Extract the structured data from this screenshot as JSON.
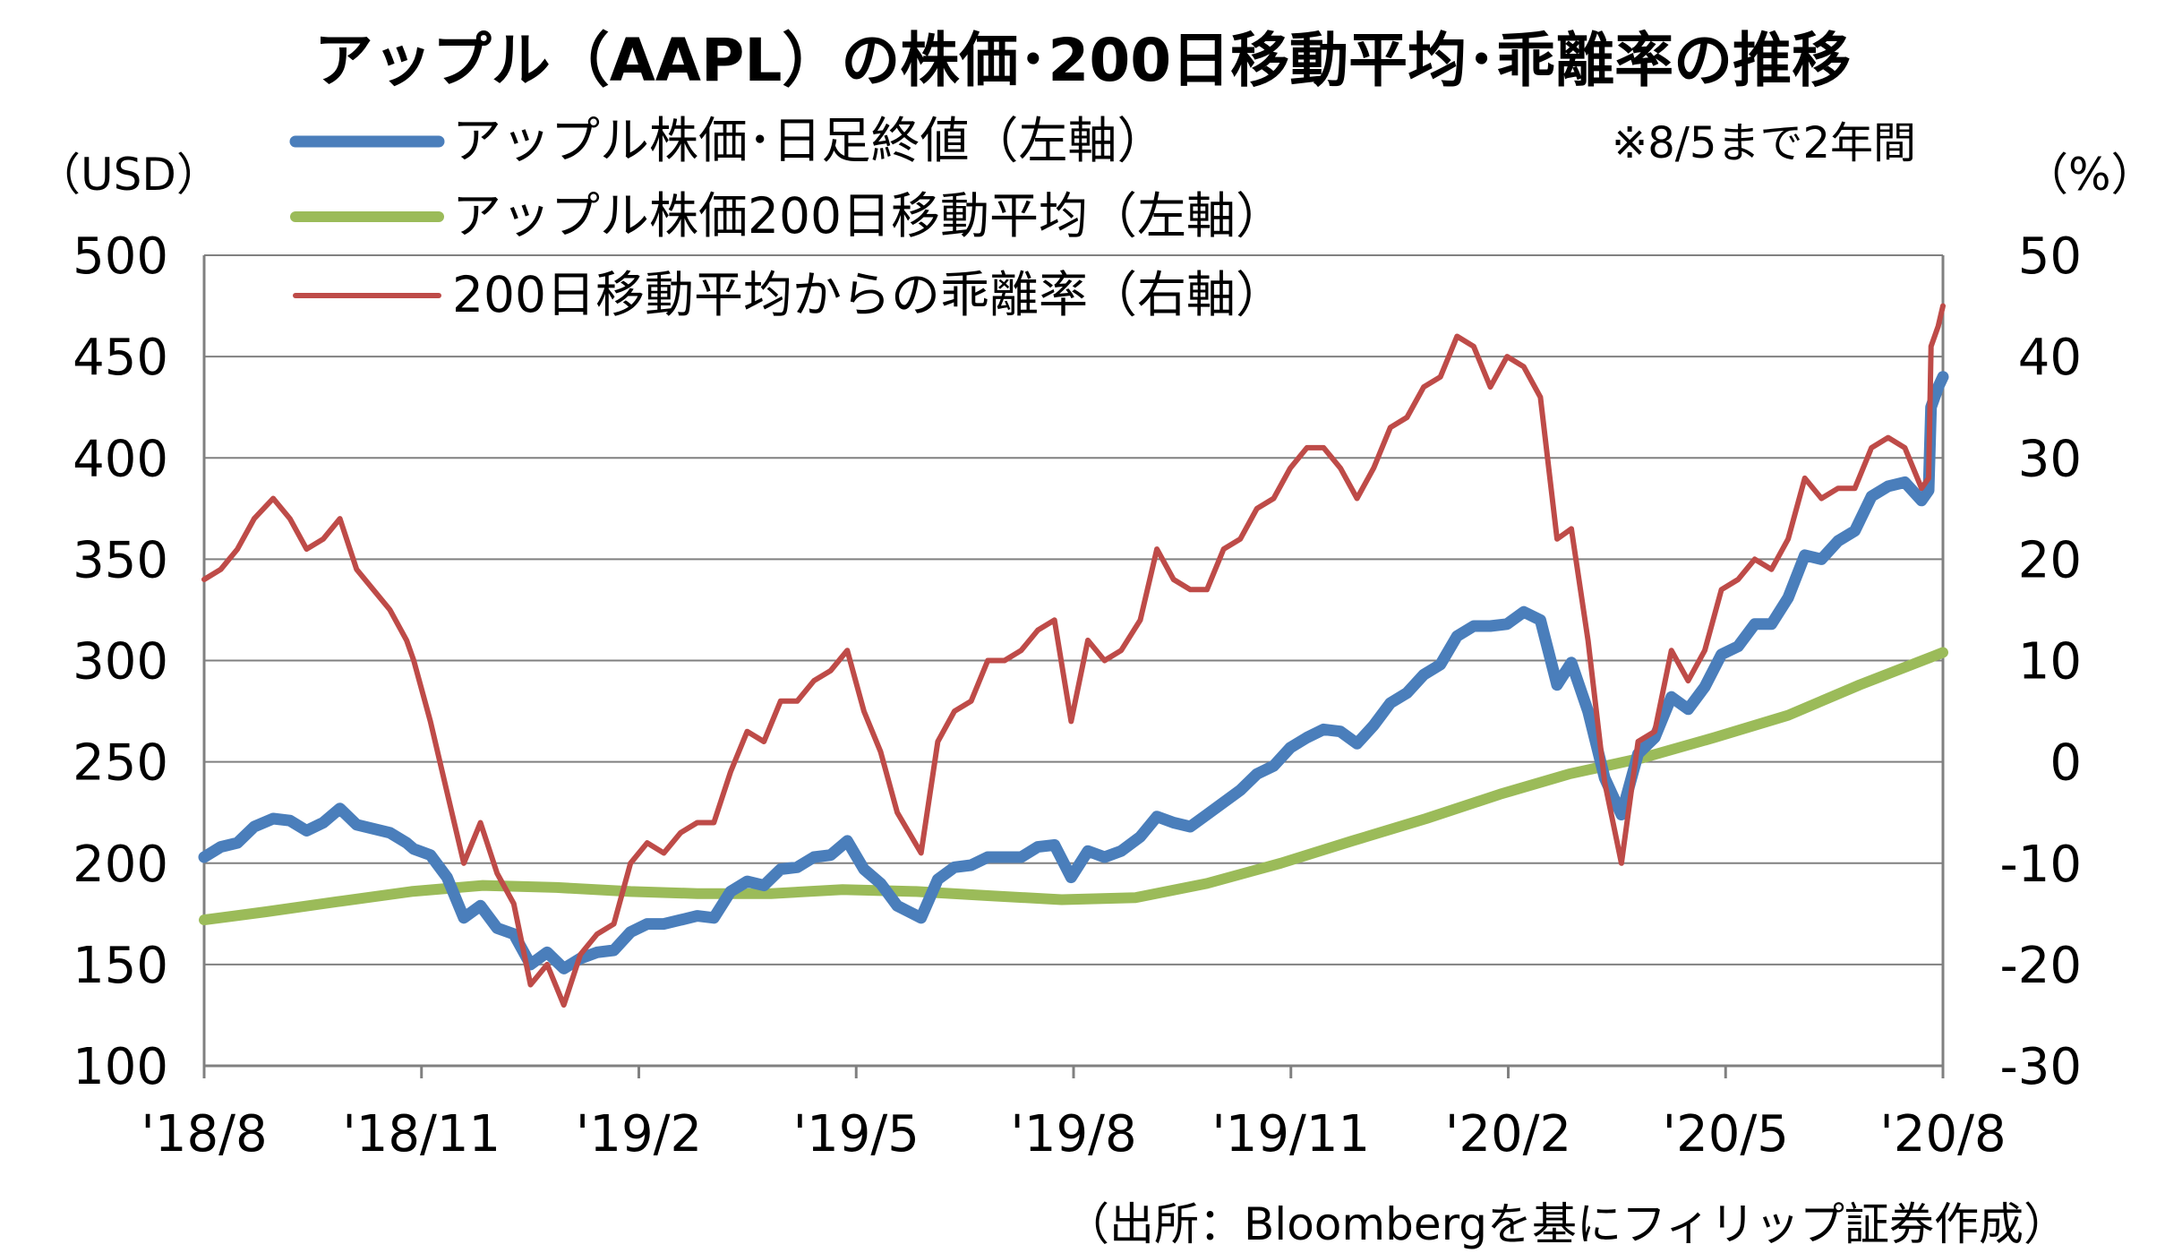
{
  "title": "アップル（AAPL）の株価･200日移動平均･乖離率の推移",
  "note": "※8/5まで2年間",
  "source": "（出所：Bloombergを基にフィリップ証券作成）",
  "colors": {
    "price": "#4a7ebb",
    "ma200": "#9bbb59",
    "deviation": "#be4b48",
    "negative_tick": "#ff0000",
    "grid": "#808080"
  },
  "chart_data": {
    "type": "line",
    "title": "アップル（AAPL）の株価･200日移動平均･乖離率の推移",
    "grid": true,
    "legend_position": "top-left",
    "x_tick_labels": [
      "'18/8",
      "'18/11",
      "'19/2",
      "'19/5",
      "'19/8",
      "'19/11",
      "'20/2",
      "'20/5",
      "'20/8"
    ],
    "y_left": {
      "unit": "（USD）",
      "range": [
        100,
        500
      ],
      "ticks": [
        500,
        450,
        400,
        350,
        300,
        250,
        200,
        150,
        100
      ]
    },
    "y_right": {
      "unit": "（%）",
      "range": [
        -30,
        50
      ],
      "ticks": [
        50,
        40,
        30,
        20,
        10,
        0,
        -10,
        -20,
        -30
      ]
    },
    "series": [
      {
        "name": "アップル株価･日足終値（左軸）",
        "axis": "left",
        "points": [
          [
            "2018-08-06",
            203
          ],
          [
            "2018-08-13",
            208
          ],
          [
            "2018-08-20",
            210
          ],
          [
            "2018-08-27",
            218
          ],
          [
            "2018-09-04",
            222
          ],
          [
            "2018-09-11",
            221
          ],
          [
            "2018-09-18",
            216
          ],
          [
            "2018-09-25",
            220
          ],
          [
            "2018-10-02",
            227
          ],
          [
            "2018-10-09",
            219
          ],
          [
            "2018-10-16",
            217
          ],
          [
            "2018-10-23",
            215
          ],
          [
            "2018-10-30",
            210
          ],
          [
            "2018-11-02",
            207
          ],
          [
            "2018-11-09",
            204
          ],
          [
            "2018-11-16",
            193
          ],
          [
            "2018-11-23",
            173
          ],
          [
            "2018-11-30",
            179
          ],
          [
            "2018-12-07",
            168
          ],
          [
            "2018-12-14",
            165
          ],
          [
            "2018-12-21",
            150
          ],
          [
            "2018-12-28",
            156
          ],
          [
            "2019-01-04",
            148
          ],
          [
            "2019-01-11",
            153
          ],
          [
            "2019-01-18",
            156
          ],
          [
            "2019-01-25",
            157
          ],
          [
            "2019-02-01",
            166
          ],
          [
            "2019-02-08",
            170
          ],
          [
            "2019-02-15",
            170
          ],
          [
            "2019-02-22",
            172
          ],
          [
            "2019-03-01",
            174
          ],
          [
            "2019-03-08",
            173
          ],
          [
            "2019-03-15",
            186
          ],
          [
            "2019-03-22",
            191
          ],
          [
            "2019-03-29",
            189
          ],
          [
            "2019-04-05",
            197
          ],
          [
            "2019-04-12",
            198
          ],
          [
            "2019-04-19",
            203
          ],
          [
            "2019-04-26",
            204
          ],
          [
            "2019-05-03",
            211
          ],
          [
            "2019-05-10",
            197
          ],
          [
            "2019-05-17",
            190
          ],
          [
            "2019-05-24",
            179
          ],
          [
            "2019-06-03",
            173
          ],
          [
            "2019-06-10",
            192
          ],
          [
            "2019-06-17",
            198
          ],
          [
            "2019-06-24",
            199
          ],
          [
            "2019-07-01",
            203
          ],
          [
            "2019-07-08",
            203
          ],
          [
            "2019-07-15",
            203
          ],
          [
            "2019-07-22",
            208
          ],
          [
            "2019-07-29",
            209
          ],
          [
            "2019-08-05",
            193
          ],
          [
            "2019-08-12",
            206
          ],
          [
            "2019-08-19",
            203
          ],
          [
            "2019-08-26",
            206
          ],
          [
            "2019-09-03",
            213
          ],
          [
            "2019-09-10",
            223
          ],
          [
            "2019-09-17",
            220
          ],
          [
            "2019-09-24",
            218
          ],
          [
            "2019-10-01",
            224
          ],
          [
            "2019-10-08",
            230
          ],
          [
            "2019-10-15",
            236
          ],
          [
            "2019-10-22",
            244
          ],
          [
            "2019-10-29",
            248
          ],
          [
            "2019-11-05",
            257
          ],
          [
            "2019-11-12",
            262
          ],
          [
            "2019-11-19",
            266
          ],
          [
            "2019-11-26",
            265
          ],
          [
            "2019-12-03",
            259
          ],
          [
            "2019-12-10",
            268
          ],
          [
            "2019-12-17",
            279
          ],
          [
            "2019-12-24",
            284
          ],
          [
            "2019-12-31",
            293
          ],
          [
            "2020-01-07",
            298
          ],
          [
            "2020-01-14",
            312
          ],
          [
            "2020-01-21",
            317
          ],
          [
            "2020-01-28",
            317
          ],
          [
            "2020-02-04",
            318
          ],
          [
            "2020-02-11",
            324
          ],
          [
            "2020-02-18",
            320
          ],
          [
            "2020-02-25",
            288
          ],
          [
            "2020-03-02",
            299
          ],
          [
            "2020-03-09",
            275
          ],
          [
            "2020-03-16",
            242
          ],
          [
            "2020-03-23",
            224
          ],
          [
            "2020-03-30",
            254
          ],
          [
            "2020-04-06",
            262
          ],
          [
            "2020-04-13",
            282
          ],
          [
            "2020-04-20",
            276
          ],
          [
            "2020-04-27",
            287
          ],
          [
            "2020-05-04",
            303
          ],
          [
            "2020-05-11",
            307
          ],
          [
            "2020-05-18",
            318
          ],
          [
            "2020-05-25",
            318
          ],
          [
            "2020-06-01",
            331
          ],
          [
            "2020-06-08",
            352
          ],
          [
            "2020-06-15",
            350
          ],
          [
            "2020-06-22",
            359
          ],
          [
            "2020-06-29",
            364
          ],
          [
            "2020-07-06",
            381
          ],
          [
            "2020-07-13",
            386
          ],
          [
            "2020-07-20",
            388
          ],
          [
            "2020-07-27",
            379
          ],
          [
            "2020-07-30",
            384
          ],
          [
            "2020-07-31",
            425
          ],
          [
            "2020-08-03",
            435
          ],
          [
            "2020-08-05",
            440
          ]
        ]
      },
      {
        "name": "アップル株価200日移動平均（左軸）",
        "axis": "left",
        "points": [
          [
            "2018-08-06",
            172
          ],
          [
            "2018-09-01",
            176
          ],
          [
            "2018-10-01",
            181
          ],
          [
            "2018-11-01",
            186
          ],
          [
            "2018-12-01",
            189
          ],
          [
            "2019-01-01",
            188
          ],
          [
            "2019-02-01",
            186
          ],
          [
            "2019-03-01",
            185
          ],
          [
            "2019-04-01",
            185
          ],
          [
            "2019-05-01",
            187
          ],
          [
            "2019-06-01",
            186
          ],
          [
            "2019-07-01",
            184
          ],
          [
            "2019-08-01",
            182
          ],
          [
            "2019-09-01",
            183
          ],
          [
            "2019-10-01",
            190
          ],
          [
            "2019-11-01",
            200
          ],
          [
            "2019-12-01",
            211
          ],
          [
            "2020-01-01",
            222
          ],
          [
            "2020-02-01",
            234
          ],
          [
            "2020-03-01",
            244
          ],
          [
            "2020-04-01",
            252
          ],
          [
            "2020-05-01",
            262
          ],
          [
            "2020-06-01",
            273
          ],
          [
            "2020-07-01",
            288
          ],
          [
            "2020-08-05",
            304
          ]
        ]
      },
      {
        "name": "200日移動平均からの乖離率（右軸）",
        "axis": "right",
        "points": [
          [
            "2018-08-06",
            18
          ],
          [
            "2018-08-13",
            19
          ],
          [
            "2018-08-20",
            21
          ],
          [
            "2018-08-27",
            24
          ],
          [
            "2018-09-04",
            26
          ],
          [
            "2018-09-11",
            24
          ],
          [
            "2018-09-18",
            21
          ],
          [
            "2018-09-25",
            22
          ],
          [
            "2018-10-02",
            24
          ],
          [
            "2018-10-09",
            19
          ],
          [
            "2018-10-16",
            17
          ],
          [
            "2018-10-23",
            15
          ],
          [
            "2018-10-30",
            12
          ],
          [
            "2018-11-02",
            10
          ],
          [
            "2018-11-09",
            4
          ],
          [
            "2018-11-16",
            -3
          ],
          [
            "2018-11-23",
            -10
          ],
          [
            "2018-11-30",
            -6
          ],
          [
            "2018-12-07",
            -11
          ],
          [
            "2018-12-14",
            -14
          ],
          [
            "2018-12-21",
            -22
          ],
          [
            "2018-12-28",
            -20
          ],
          [
            "2019-01-04",
            -24
          ],
          [
            "2019-01-11",
            -19
          ],
          [
            "2019-01-18",
            -17
          ],
          [
            "2019-01-25",
            -16
          ],
          [
            "2019-02-01",
            -10
          ],
          [
            "2019-02-08",
            -8
          ],
          [
            "2019-02-15",
            -9
          ],
          [
            "2019-02-22",
            -7
          ],
          [
            "2019-03-01",
            -6
          ],
          [
            "2019-03-08",
            -6
          ],
          [
            "2019-03-15",
            -1
          ],
          [
            "2019-03-22",
            3
          ],
          [
            "2019-03-29",
            2
          ],
          [
            "2019-04-05",
            6
          ],
          [
            "2019-04-12",
            6
          ],
          [
            "2019-04-19",
            8
          ],
          [
            "2019-04-26",
            9
          ],
          [
            "2019-05-03",
            11
          ],
          [
            "2019-05-10",
            5
          ],
          [
            "2019-05-17",
            1
          ],
          [
            "2019-05-24",
            -5
          ],
          [
            "2019-06-03",
            -9
          ],
          [
            "2019-06-10",
            2
          ],
          [
            "2019-06-17",
            5
          ],
          [
            "2019-06-24",
            6
          ],
          [
            "2019-07-01",
            10
          ],
          [
            "2019-07-08",
            10
          ],
          [
            "2019-07-15",
            11
          ],
          [
            "2019-07-22",
            13
          ],
          [
            "2019-07-29",
            14
          ],
          [
            "2019-08-05",
            4
          ],
          [
            "2019-08-12",
            12
          ],
          [
            "2019-08-19",
            10
          ],
          [
            "2019-08-26",
            11
          ],
          [
            "2019-09-03",
            14
          ],
          [
            "2019-09-10",
            21
          ],
          [
            "2019-09-17",
            18
          ],
          [
            "2019-09-24",
            17
          ],
          [
            "2019-10-01",
            17
          ],
          [
            "2019-10-08",
            21
          ],
          [
            "2019-10-15",
            22
          ],
          [
            "2019-10-22",
            25
          ],
          [
            "2019-10-29",
            26
          ],
          [
            "2019-11-05",
            29
          ],
          [
            "2019-11-12",
            31
          ],
          [
            "2019-11-19",
            31
          ],
          [
            "2019-11-26",
            29
          ],
          [
            "2019-12-03",
            26
          ],
          [
            "2019-12-10",
            29
          ],
          [
            "2019-12-17",
            33
          ],
          [
            "2019-12-24",
            34
          ],
          [
            "2019-12-31",
            37
          ],
          [
            "2020-01-07",
            38
          ],
          [
            "2020-01-14",
            42
          ],
          [
            "2020-01-21",
            41
          ],
          [
            "2020-01-28",
            37
          ],
          [
            "2020-02-04",
            40
          ],
          [
            "2020-02-11",
            39
          ],
          [
            "2020-02-18",
            36
          ],
          [
            "2020-02-25",
            22
          ],
          [
            "2020-03-02",
            23
          ],
          [
            "2020-03-09",
            12
          ],
          [
            "2020-03-16",
            -2
          ],
          [
            "2020-03-23",
            -10
          ],
          [
            "2020-03-30",
            2
          ],
          [
            "2020-04-06",
            3
          ],
          [
            "2020-04-13",
            11
          ],
          [
            "2020-04-20",
            8
          ],
          [
            "2020-04-27",
            11
          ],
          [
            "2020-05-04",
            17
          ],
          [
            "2020-05-11",
            18
          ],
          [
            "2020-05-18",
            20
          ],
          [
            "2020-05-25",
            19
          ],
          [
            "2020-06-01",
            22
          ],
          [
            "2020-06-08",
            28
          ],
          [
            "2020-06-15",
            26
          ],
          [
            "2020-06-22",
            27
          ],
          [
            "2020-06-29",
            27
          ],
          [
            "2020-07-06",
            31
          ],
          [
            "2020-07-13",
            32
          ],
          [
            "2020-07-20",
            31
          ],
          [
            "2020-07-27",
            27
          ],
          [
            "2020-07-30",
            28
          ],
          [
            "2020-07-31",
            41
          ],
          [
            "2020-08-03",
            43
          ],
          [
            "2020-08-05",
            45
          ]
        ]
      }
    ]
  }
}
